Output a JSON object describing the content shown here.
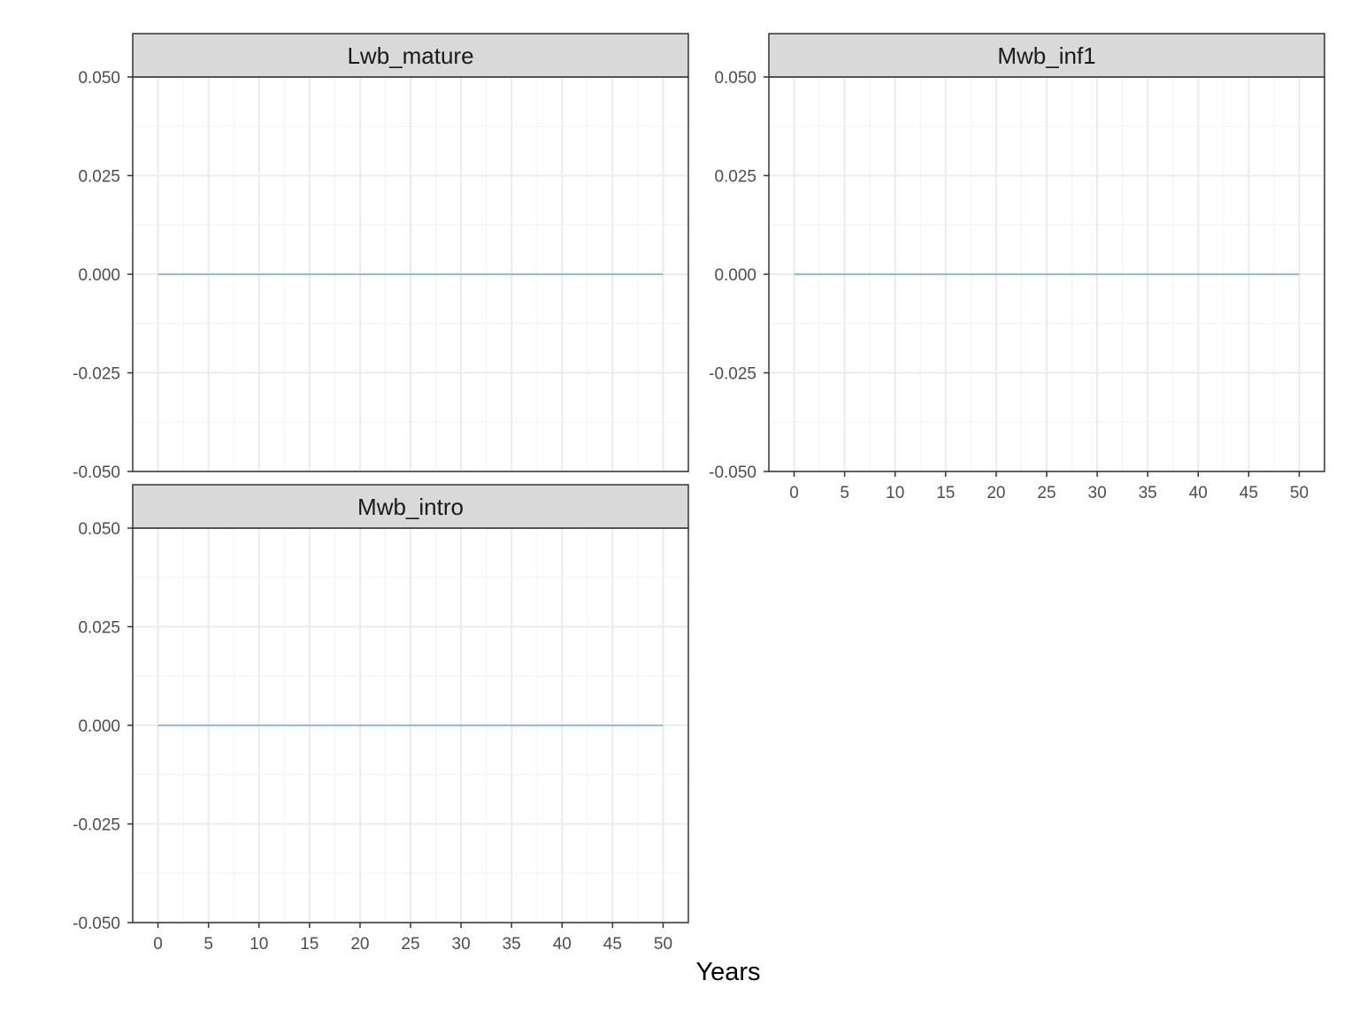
{
  "chart_data": {
    "type": "line",
    "layout": "facet_wrap",
    "xlabel": "Years",
    "ylabel": "",
    "xlim": [
      -2.5,
      52.5
    ],
    "ylim": [
      -0.05,
      0.05
    ],
    "x_ticks": [
      0,
      5,
      10,
      15,
      20,
      25,
      30,
      35,
      40,
      45,
      50
    ],
    "x_tick_labels": [
      "0",
      "5",
      "10",
      "15",
      "20",
      "25",
      "30",
      "35",
      "40",
      "45",
      "50"
    ],
    "y_ticks": [
      -0.05,
      -0.025,
      0,
      0.025,
      0.05
    ],
    "y_tick_labels": [
      "-0.050",
      "-0.025",
      "0.000",
      "0.025",
      "0.050"
    ],
    "grid": true,
    "line_color": "#85c1e9",
    "strip_fill": "#d9d9d9",
    "panels": [
      {
        "title": "Lwb_mature",
        "x": [
          0,
          50
        ],
        "y": [
          0,
          0
        ]
      },
      {
        "title": "Mwb_inf1",
        "x": [
          0,
          50
        ],
        "y": [
          0,
          0
        ]
      },
      {
        "title": "Mwb_intro",
        "x": [
          0,
          50
        ],
        "y": [
          0,
          0
        ]
      }
    ]
  }
}
